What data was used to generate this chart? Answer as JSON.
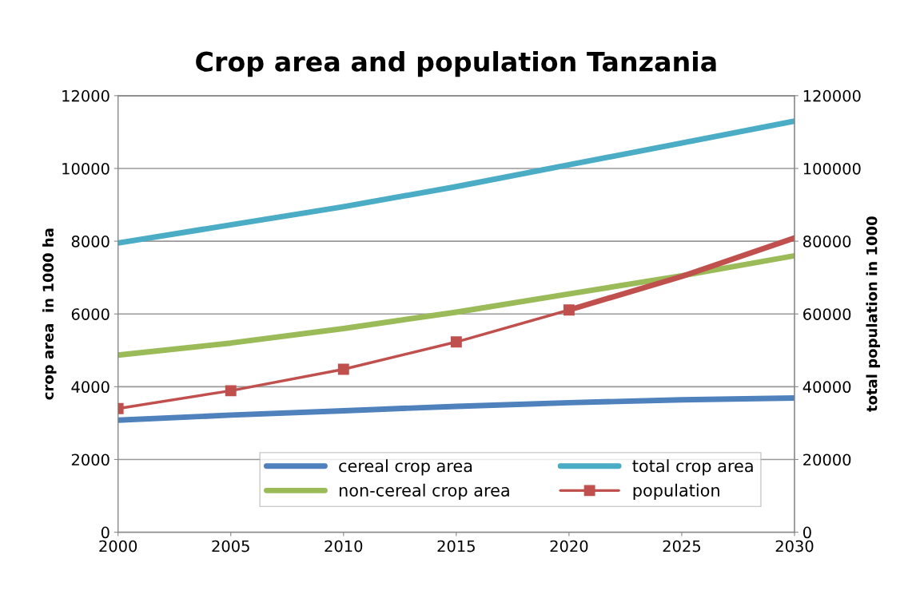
{
  "chart_data": {
    "type": "line",
    "title": "Crop area and population Tanzania",
    "ylabel": "crop area  in 1000 ha",
    "y2label": "total population in 1000",
    "x": [
      2000,
      2005,
      2010,
      2015,
      2020,
      2025,
      2030
    ],
    "series": [
      {
        "name": "cereal crop area",
        "color": "#4f81bd",
        "values": [
          3080,
          3220,
          3340,
          3460,
          3560,
          3640,
          3690
        ]
      },
      {
        "name": "non-cereal crop area",
        "color": "#9bbb59",
        "values": [
          4870,
          5200,
          5600,
          6050,
          6550,
          7050,
          7600
        ]
      },
      {
        "name": "total crop area",
        "color": "#4bacc6",
        "values": [
          7950,
          8450,
          8950,
          9500,
          10100,
          10700,
          11300
        ]
      },
      {
        "name": "population",
        "color": "#c0504d",
        "axis": "y2",
        "marker": "square",
        "x": [
          2000,
          2005,
          2010,
          2015,
          2020
        ],
        "values": [
          34000,
          38900,
          44800,
          52300,
          61100
        ]
      },
      {
        "color": "#c0504d",
        "axis": "y2",
        "x": [
          2020,
          2025,
          2030
        ],
        "values": [
          61100,
          70300,
          80900
        ]
      }
    ],
    "xlim": [
      2000,
      2030
    ],
    "xticks": [
      2000,
      2005,
      2010,
      2015,
      2020,
      2025,
      2030
    ],
    "ylim": [
      0,
      12000
    ],
    "yticks": [
      0,
      2000,
      4000,
      6000,
      8000,
      10000,
      12000
    ],
    "y2lim": [
      0,
      120000
    ],
    "y2ticks": [
      0,
      20000,
      40000,
      60000,
      80000,
      100000,
      120000
    ],
    "grid": "y",
    "legend": "bottom"
  }
}
